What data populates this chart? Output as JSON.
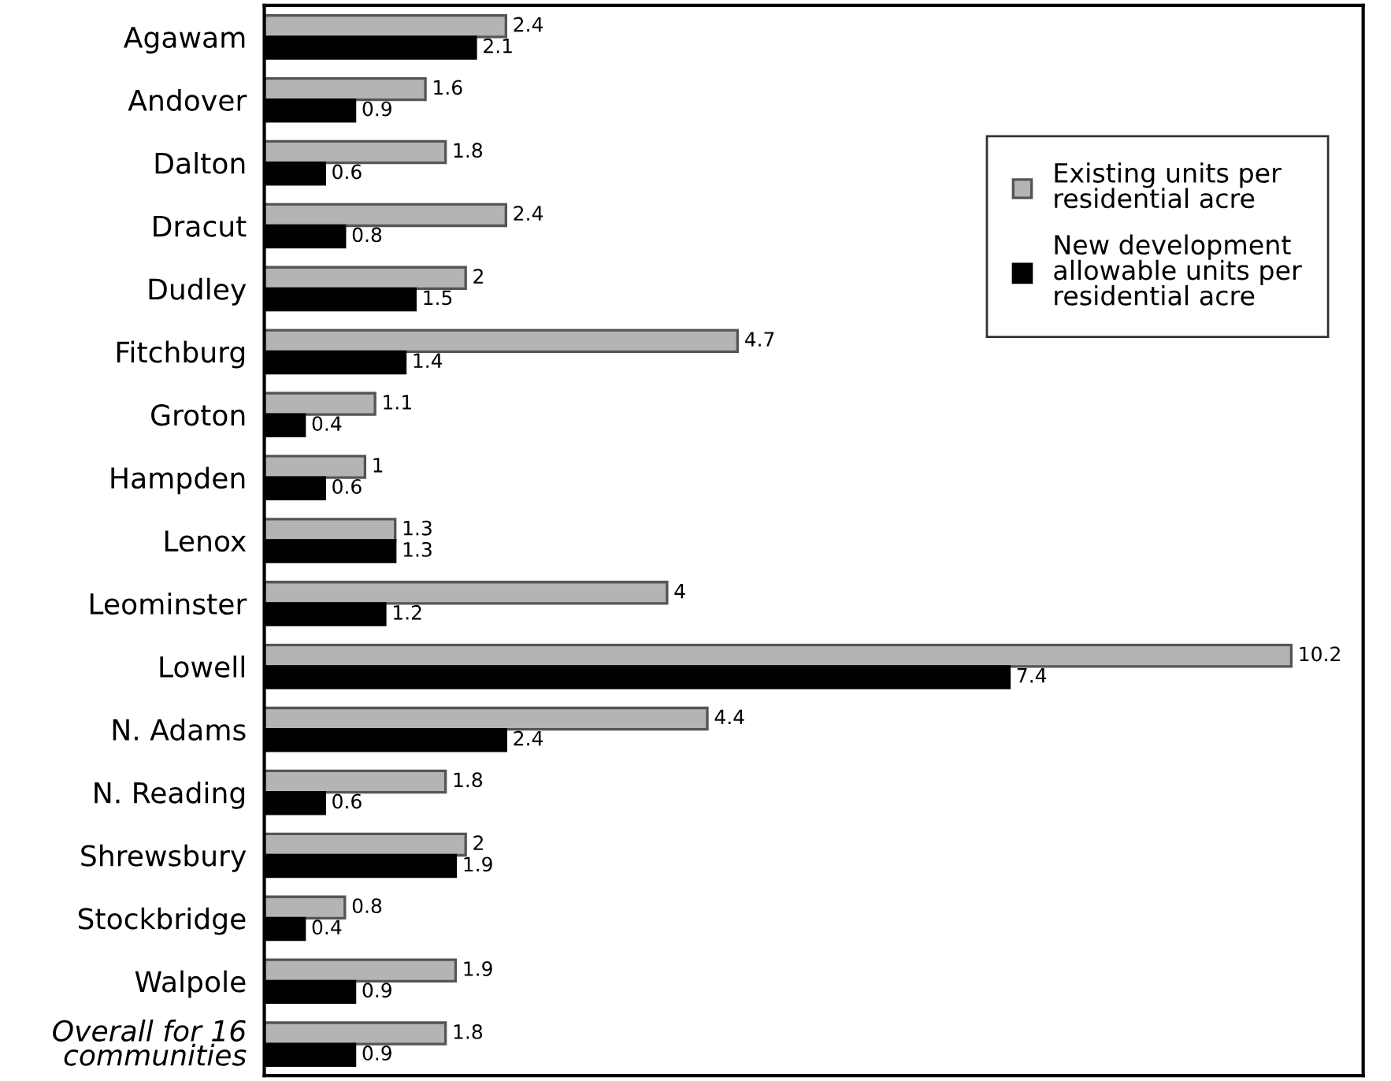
{
  "chart_data": {
    "type": "bar",
    "orientation": "horizontal",
    "categories": [
      "Agawam",
      "Andover",
      "Dalton",
      "Dracut",
      "Dudley",
      "Fitchburg",
      "Groton",
      "Hampden",
      "Lenox",
      "Leominster",
      "Lowell",
      "N. Adams",
      "N. Reading",
      "Shrewsbury",
      "Stockbridge",
      "Walpole",
      "Overall for 16\ncommunities"
    ],
    "series": [
      {
        "name": "Existing units per\nresidential acre",
        "color": "#b4b4b4",
        "values": [
          2.4,
          1.6,
          1.8,
          2.4,
          2,
          4.7,
          1.1,
          1,
          1.3,
          4,
          10.2,
          4.4,
          1.8,
          2,
          0.8,
          1.9,
          1.8
        ]
      },
      {
        "name": "New development\nallowable units per\nresidential acre",
        "color": "#000000",
        "values": [
          2.1,
          0.9,
          0.6,
          0.8,
          1.5,
          1.4,
          0.4,
          0.6,
          1.3,
          1.2,
          7.4,
          2.4,
          0.6,
          1.9,
          0.4,
          0.9,
          0.9
        ]
      }
    ],
    "data_labels": true,
    "legend": "top right",
    "grid": false,
    "tick_labels": "y"
  }
}
